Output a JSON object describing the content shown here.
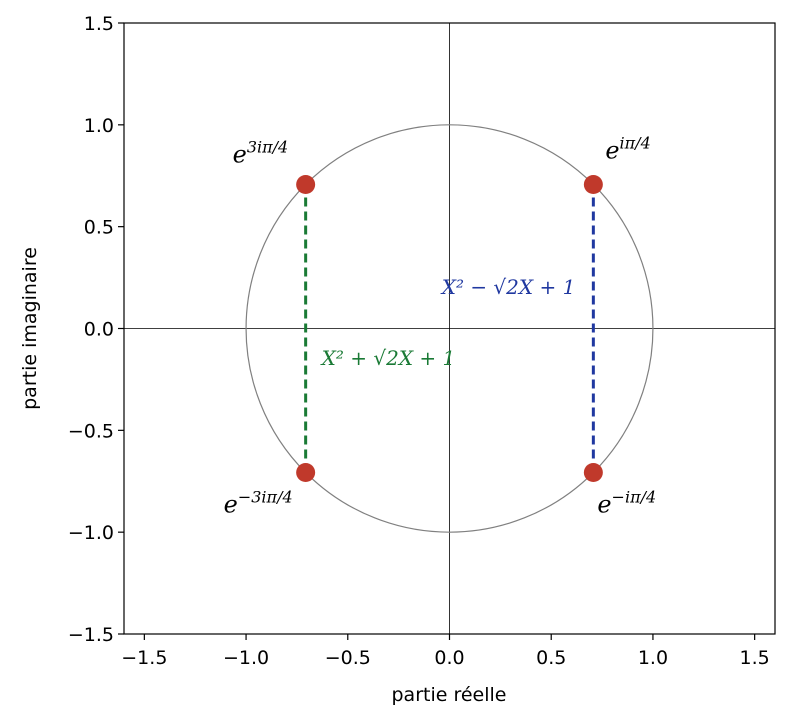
{
  "chart_data": {
    "type": "scatter",
    "xlabel": "partie réelle",
    "ylabel": "partie imaginaire",
    "xlim": [
      -1.6,
      1.6
    ],
    "ylim": [
      -1.5,
      1.5
    ],
    "x_ticks": [
      -1.5,
      -1.0,
      -0.5,
      0.0,
      0.5,
      1.0,
      1.5
    ],
    "y_ticks": [
      -1.5,
      -1.0,
      -0.5,
      0.0,
      0.5,
      1.0,
      1.5
    ],
    "x_tick_labels": [
      "−1.5",
      "−1.0",
      "−0.5",
      "0.0",
      "0.5",
      "1.0",
      "1.5"
    ],
    "y_tick_labels": [
      "−1.5",
      "−1.0",
      "−0.5",
      "0.0",
      "0.5",
      "1.0",
      "1.5"
    ],
    "grid": false,
    "unit_circle": {
      "center": [
        0,
        0
      ],
      "radius": 1,
      "color": "#808080"
    },
    "axes_lines": {
      "x": 0,
      "y": 0,
      "color": "#000000"
    },
    "points": [
      {
        "x": 0.7071,
        "y": 0.7071,
        "label_base": "e",
        "label_exp": "iπ/4"
      },
      {
        "x": -0.7071,
        "y": 0.7071,
        "label_base": "e",
        "label_exp": "3iπ/4"
      },
      {
        "x": -0.7071,
        "y": -0.7071,
        "label_base": "e",
        "label_exp": "−3iπ/4"
      },
      {
        "x": 0.7071,
        "y": -0.7071,
        "label_base": "e",
        "label_exp": "−iπ/4"
      }
    ],
    "point_color": "#c0392b",
    "segments": [
      {
        "x": 0.7071,
        "y1": -0.7071,
        "y2": 0.7071,
        "color": "#2038a0",
        "label": "X² − √2X + 1"
      },
      {
        "x": -0.7071,
        "y1": -0.7071,
        "y2": 0.7071,
        "color": "#1a7a35",
        "label": "X² + √2X + 1"
      }
    ]
  }
}
